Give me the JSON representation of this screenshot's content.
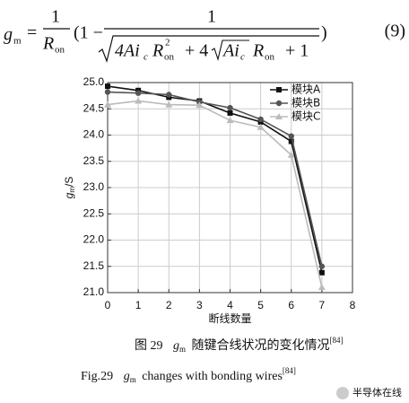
{
  "formula": [
    "g",
    "m",
    "=",
    "1",
    "R",
    "on",
    "(1 −",
    "1",
    "4Ai",
    "c",
    "R",
    "2",
    "on",
    "+ 4",
    "Ai",
    "c",
    "R",
    "on",
    "+ 1",
    ")",
    "(9)"
  ],
  "chart_data": {
    "type": "line",
    "x_label": "断线数量",
    "y_label": {
      "symbol": "g",
      "subscript": "m",
      "unit": "/S"
    },
    "x": [
      0,
      1,
      2,
      3,
      4,
      5,
      6,
      7
    ],
    "series": [
      {
        "name": "模块A",
        "color": "#111111",
        "marker": "square",
        "values": [
          24.93,
          24.85,
          24.72,
          24.65,
          24.42,
          24.25,
          23.88,
          21.38
        ]
      },
      {
        "name": "模块B",
        "color": "#555555",
        "marker": "circle",
        "values": [
          24.82,
          24.8,
          24.77,
          24.63,
          24.52,
          24.3,
          23.98,
          21.5
        ]
      },
      {
        "name": "模块C",
        "color": "#bbbbbb",
        "marker": "triangle",
        "values": [
          24.58,
          24.65,
          24.58,
          24.57,
          24.28,
          24.15,
          23.62,
          21.1
        ]
      }
    ],
    "xlim": [
      0,
      8
    ],
    "xticks": [
      0,
      1,
      2,
      3,
      4,
      5,
      6,
      7,
      8
    ],
    "ylim": [
      21,
      25
    ],
    "yticks": [
      {
        "value": 21,
        "label": "21.0"
      },
      21.5,
      {
        "value": 22,
        "label": "22.0"
      },
      22.5,
      {
        "value": 23,
        "label": "23.0"
      },
      23.5,
      {
        "value": 24,
        "label": "24.0"
      },
      24.5,
      {
        "value": 25,
        "label": "25.0"
      }
    ],
    "grid": true,
    "legend": "upper right"
  },
  "caption_cn": {
    "label": "图 29",
    "symbol": "g",
    "subscript": "m",
    "text": "随键合线状况的变化情况",
    "ref": "[84]"
  },
  "caption_en": {
    "label": "Fig.29",
    "symbol": "g",
    "subscript": "m",
    "text": "changes with bonding wires",
    "ref": "[84]"
  },
  "watermark": "半导体在线"
}
